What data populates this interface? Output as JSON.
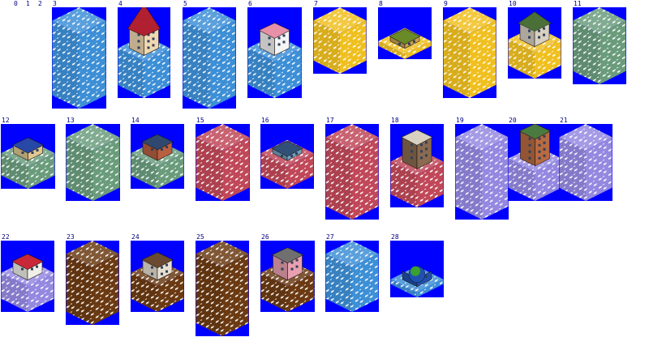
{
  "header_labels": [
    "0",
    "1",
    "2"
  ],
  "colors": {
    "background_blue": "#0000ff",
    "label_color": "#000080",
    "blue_tile": "#3d8fd6",
    "yellow_tile": "#f0c020",
    "green_tile": "#6a9c7c",
    "red_tile": "#c04858",
    "purple_tile": "#9488e0",
    "brown_tile": "#6b3a12"
  },
  "sprites": [
    {
      "id": "3",
      "zone": "blue",
      "building": "none"
    },
    {
      "id": "4",
      "zone": "blue",
      "building": "red-tower"
    },
    {
      "id": "5",
      "zone": "blue",
      "building": "none"
    },
    {
      "id": "6",
      "zone": "blue",
      "building": "pink-pavilion"
    },
    {
      "id": "7",
      "zone": "yellow",
      "building": "none"
    },
    {
      "id": "8",
      "zone": "yellow",
      "building": "farm"
    },
    {
      "id": "9",
      "zone": "yellow",
      "building": "none"
    },
    {
      "id": "10",
      "zone": "yellow",
      "building": "green-dome"
    },
    {
      "id": "11",
      "zone": "green",
      "building": "none"
    },
    {
      "id": "12",
      "zone": "green",
      "building": "blue-roof-hall"
    },
    {
      "id": "13",
      "zone": "green",
      "building": "none"
    },
    {
      "id": "14",
      "zone": "green",
      "building": "factory"
    },
    {
      "id": "15",
      "zone": "red",
      "building": "none"
    },
    {
      "id": "16",
      "zone": "red",
      "building": "solar-plant"
    },
    {
      "id": "17",
      "zone": "red",
      "building": "none"
    },
    {
      "id": "18",
      "zone": "red",
      "building": "office-block"
    },
    {
      "id": "19",
      "zone": "purple",
      "building": "none"
    },
    {
      "id": "20",
      "zone": "purple",
      "building": "brick-tower"
    },
    {
      "id": "21",
      "zone": "purple",
      "building": "none"
    },
    {
      "id": "22",
      "zone": "purple",
      "building": "mansion"
    },
    {
      "id": "23",
      "zone": "brown",
      "building": "none"
    },
    {
      "id": "24",
      "zone": "brown",
      "building": "house"
    },
    {
      "id": "25",
      "zone": "brown",
      "building": "none"
    },
    {
      "id": "26",
      "zone": "brown",
      "building": "pink-apartment"
    },
    {
      "id": "27",
      "zone": "blue",
      "building": "none"
    },
    {
      "id": "28",
      "zone": "blue",
      "building": "globe-park"
    }
  ]
}
